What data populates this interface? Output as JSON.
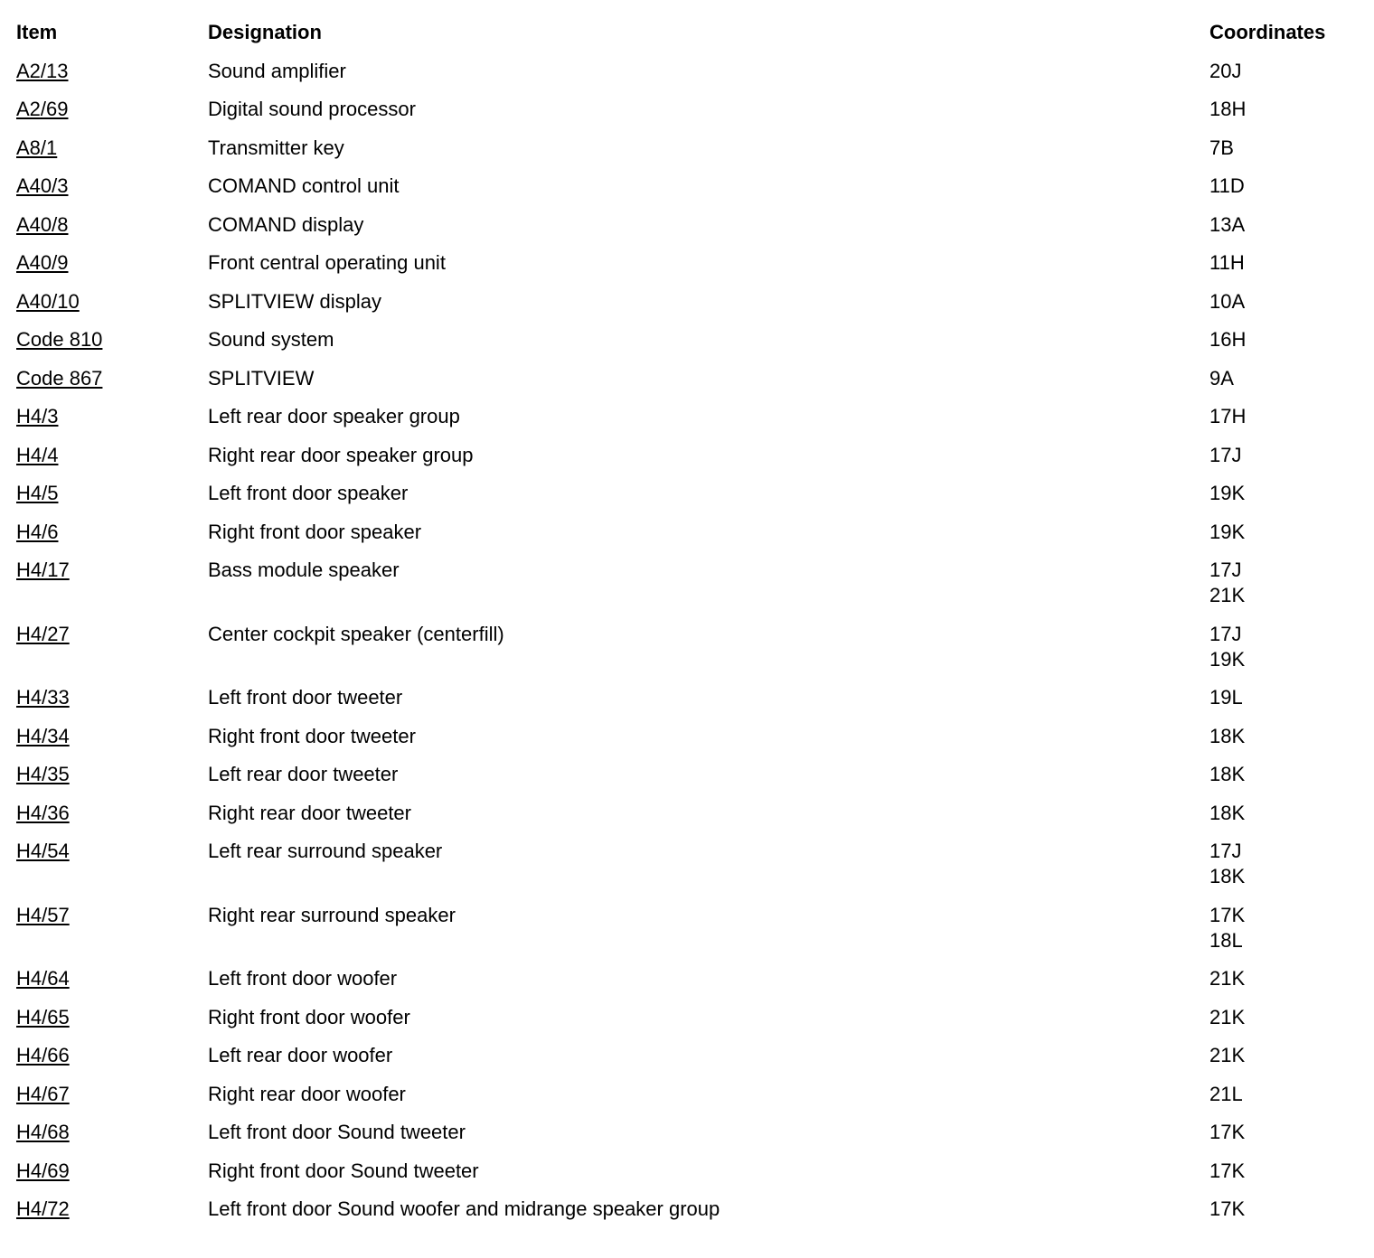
{
  "headers": {
    "item": "Item",
    "designation": "Designation",
    "coordinates": "Coordinates"
  },
  "rows": [
    {
      "item": "A2/13",
      "designation": "Sound amplifier",
      "coordinates": [
        "20J"
      ]
    },
    {
      "item": "A2/69",
      "designation": "Digital sound processor",
      "coordinates": [
        "18H"
      ]
    },
    {
      "item": "A8/1",
      "designation": "Transmitter key",
      "coordinates": [
        "7B"
      ]
    },
    {
      "item": "A40/3",
      "designation": "COMAND control unit",
      "coordinates": [
        "11D"
      ]
    },
    {
      "item": "A40/8",
      "designation": "COMAND display",
      "coordinates": [
        "13A"
      ]
    },
    {
      "item": "A40/9",
      "designation": "Front central operating unit",
      "coordinates": [
        "11H"
      ]
    },
    {
      "item": "A40/10",
      "designation": "SPLITVIEW display",
      "coordinates": [
        "10A"
      ]
    },
    {
      "item": "Code 810",
      "designation": "Sound system",
      "coordinates": [
        "16H"
      ]
    },
    {
      "item": "Code 867",
      "designation": "SPLITVIEW",
      "coordinates": [
        "9A"
      ]
    },
    {
      "item": "H4/3",
      "designation": "Left rear door speaker group",
      "coordinates": [
        "17H"
      ]
    },
    {
      "item": "H4/4",
      "designation": "Right rear door speaker group",
      "coordinates": [
        "17J"
      ]
    },
    {
      "item": "H4/5",
      "designation": "Left front door speaker",
      "coordinates": [
        "19K"
      ]
    },
    {
      "item": "H4/6",
      "designation": "Right front door speaker",
      "coordinates": [
        "19K"
      ]
    },
    {
      "item": "H4/17",
      "designation": "Bass module speaker",
      "coordinates": [
        "17J",
        "21K"
      ]
    },
    {
      "item": "H4/27",
      "designation": "Center cockpit speaker (centerfill)",
      "coordinates": [
        "17J",
        "19K"
      ]
    },
    {
      "item": "H4/33",
      "designation": "Left front door tweeter",
      "coordinates": [
        "19L"
      ]
    },
    {
      "item": "H4/34",
      "designation": "Right front door tweeter",
      "coordinates": [
        "18K"
      ]
    },
    {
      "item": "H4/35",
      "designation": "Left rear door tweeter",
      "coordinates": [
        "18K"
      ]
    },
    {
      "item": "H4/36",
      "designation": "Right rear door tweeter",
      "coordinates": [
        "18K"
      ]
    },
    {
      "item": "H4/54",
      "designation": "Left rear surround speaker",
      "coordinates": [
        "17J",
        "18K"
      ]
    },
    {
      "item": "H4/57",
      "designation": "Right rear surround speaker",
      "coordinates": [
        "17K",
        "18L"
      ]
    },
    {
      "item": "H4/64",
      "designation": "Left front door woofer",
      "coordinates": [
        "21K"
      ]
    },
    {
      "item": "H4/65",
      "designation": "Right front door woofer",
      "coordinates": [
        "21K"
      ]
    },
    {
      "item": "H4/66",
      "designation": "Left rear door woofer",
      "coordinates": [
        "21K"
      ]
    },
    {
      "item": "H4/67",
      "designation": "Right rear door woofer",
      "coordinates": [
        "21L"
      ]
    },
    {
      "item": "H4/68",
      "designation": "Left front door Sound tweeter",
      "coordinates": [
        "17K"
      ]
    },
    {
      "item": "H4/69",
      "designation": "Right front door Sound tweeter",
      "coordinates": [
        "17K"
      ]
    },
    {
      "item": "H4/72",
      "designation": "Left front door Sound woofer and midrange speaker group",
      "coordinates": [
        "17K"
      ]
    }
  ]
}
